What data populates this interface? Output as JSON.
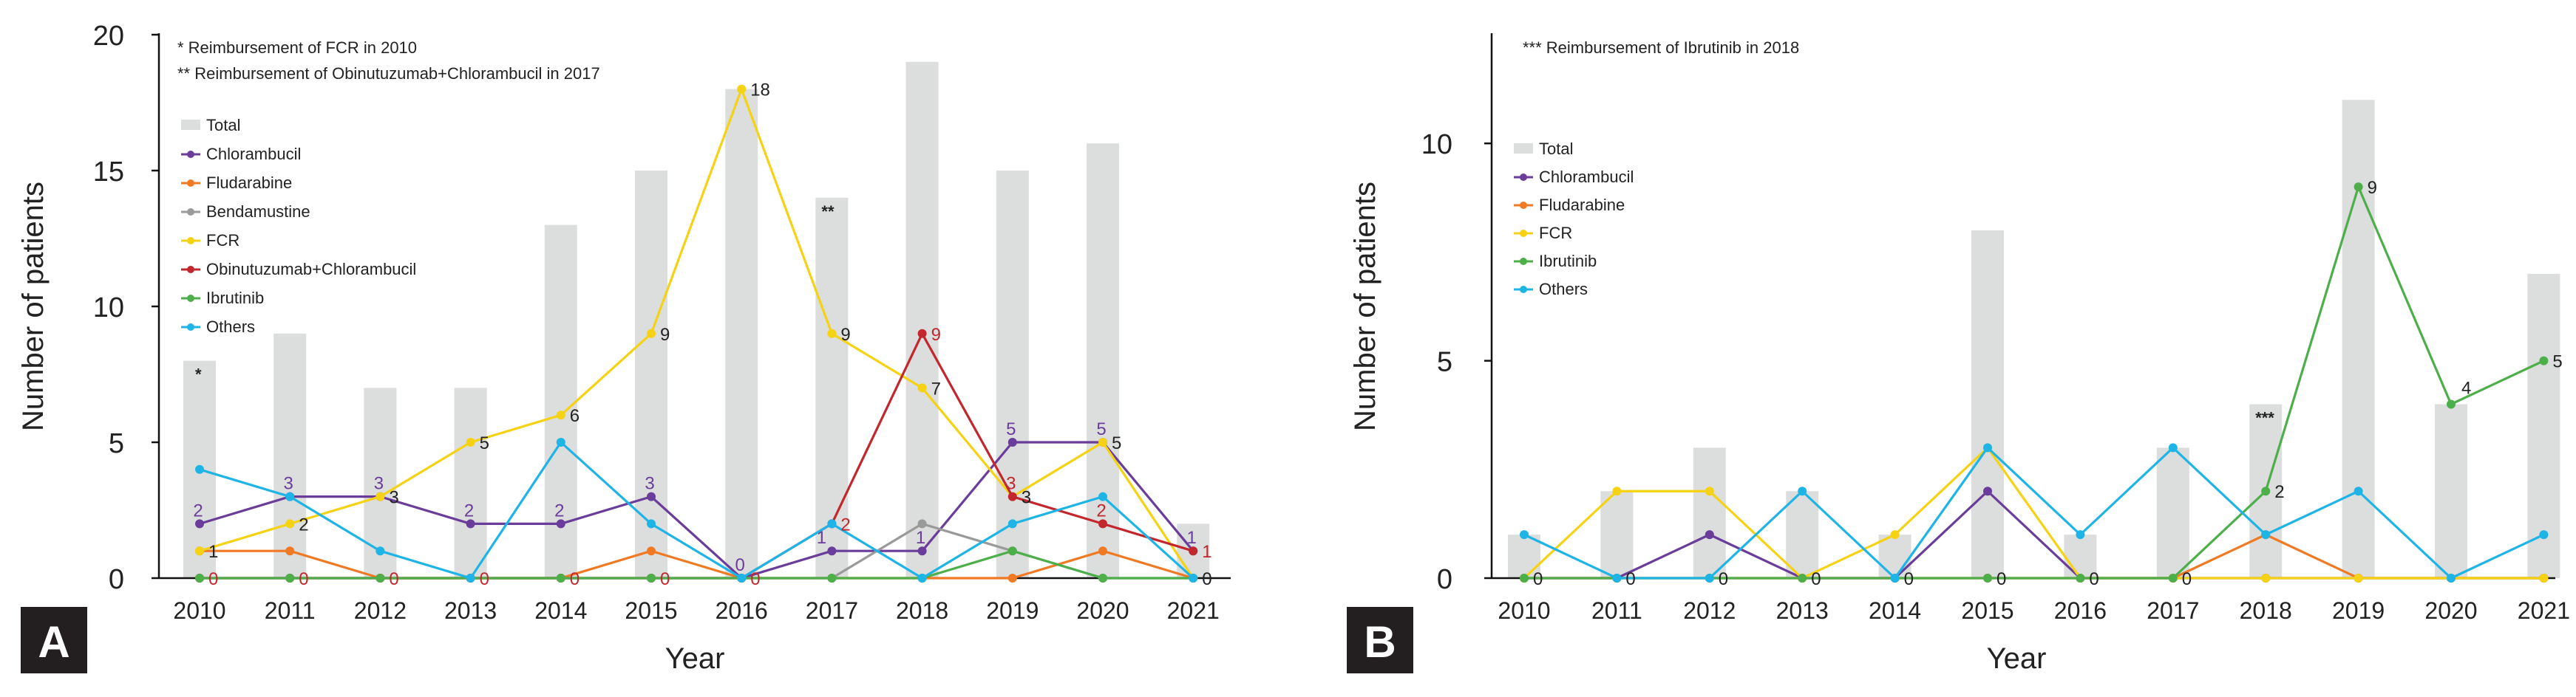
{
  "colors": {
    "total_bar": "#dcdddd",
    "axis": "#111111",
    "text": "#222222",
    "badge_bg": "#231f20",
    "badge_text": "#ffffff"
  },
  "chart_data": [
    {
      "type": "bar+line",
      "panel_label": "A",
      "xlabel": "Year",
      "ylabel": "Number of patients",
      "ylim": [
        0,
        20
      ],
      "yticks": [
        "0",
        "5",
        "10",
        "15",
        "20"
      ],
      "categories": [
        "2010",
        "2011",
        "2012",
        "2013",
        "2014",
        "2015",
        "2016",
        "2017",
        "2018",
        "2019",
        "2020",
        "2021"
      ],
      "notes": [
        "* Reimbursement of FCR in 2010",
        "** Reimbursement of Obinutuzumab+Chlorambucil in 2017"
      ],
      "bar_markers": [
        {
          "index": 0,
          "text": "*"
        },
        {
          "index": 7,
          "text": "**"
        }
      ],
      "total": {
        "name": "Total",
        "values": [
          8,
          9,
          7,
          7,
          13,
          15,
          18,
          14,
          19,
          15,
          16,
          2
        ]
      },
      "series": [
        {
          "name": "Chlorambucil",
          "color": "#6a3d9a",
          "values": [
            2,
            3,
            3,
            2,
            2,
            3,
            0,
            1,
            1,
            5,
            5,
            1
          ]
        },
        {
          "name": "Fludarabine",
          "color": "#f07a24",
          "values": [
            1,
            1,
            0,
            0,
            0,
            1,
            0,
            0,
            0,
            0,
            1,
            0
          ]
        },
        {
          "name": "Bendamustine",
          "color": "#9a9a9a",
          "values": [
            0,
            0,
            0,
            0,
            0,
            0,
            0,
            0,
            2,
            1,
            0,
            0
          ]
        },
        {
          "name": "FCR",
          "color": "#f5d214",
          "values": [
            1,
            2,
            3,
            5,
            6,
            9,
            18,
            9,
            7,
            3,
            5,
            0
          ]
        },
        {
          "name": "Obinutuzumab+Chlorambucil",
          "color": "#c1272d",
          "values": [
            0,
            0,
            0,
            0,
            0,
            0,
            0,
            2,
            9,
            3,
            2,
            1
          ]
        },
        {
          "name": "Ibrutinib",
          "color": "#4daf4a",
          "values": [
            0,
            0,
            0,
            0,
            0,
            0,
            0,
            0,
            0,
            1,
            0,
            0
          ]
        },
        {
          "name": "Others",
          "color": "#1fb4e6",
          "values": [
            4,
            3,
            1,
            0,
            5,
            2,
            0,
            2,
            0,
            2,
            3,
            0
          ]
        }
      ],
      "data_labels": [
        {
          "i": 0,
          "text": "2",
          "color": "#6a3d9a",
          "pos": "above"
        },
        {
          "i": 1,
          "text": "3",
          "color": "#6a3d9a",
          "pos": "above"
        },
        {
          "i": 2,
          "text": "3",
          "color": "#6a3d9a",
          "pos": "above"
        },
        {
          "i": 3,
          "text": "2",
          "color": "#6a3d9a",
          "pos": "above"
        },
        {
          "i": 4,
          "text": "2",
          "color": "#6a3d9a",
          "pos": "above"
        },
        {
          "i": 5,
          "text": "3",
          "color": "#6a3d9a",
          "pos": "above"
        },
        {
          "i": 6,
          "text": "0",
          "color": "#6a3d9a",
          "pos": "above"
        },
        {
          "i": 7,
          "text": "1",
          "color": "#6a3d9a",
          "pos": "above-left"
        },
        {
          "i": 8,
          "text": "1",
          "color": "#6a3d9a",
          "pos": "above"
        },
        {
          "i": 9,
          "text": "5",
          "color": "#6a3d9a",
          "pos": "above"
        },
        {
          "i": 10,
          "text": "5",
          "color": "#6a3d9a",
          "pos": "above"
        },
        {
          "i": 11,
          "text": "1",
          "color": "#6a3d9a",
          "pos": "above"
        },
        {
          "i": 0,
          "text": "1",
          "color": "#222222",
          "pos": "right"
        },
        {
          "i": 1,
          "text": "2",
          "color": "#222222",
          "pos": "right"
        },
        {
          "i": 2,
          "text": "3",
          "color": "#222222",
          "pos": "right"
        },
        {
          "i": 3,
          "text": "5",
          "color": "#222222",
          "pos": "right"
        },
        {
          "i": 4,
          "text": "6",
          "color": "#222222",
          "pos": "right"
        },
        {
          "i": 5,
          "text": "9",
          "color": "#222222",
          "pos": "right"
        },
        {
          "i": 6,
          "text": "18",
          "color": "#222222",
          "pos": "right"
        },
        {
          "i": 7,
          "text": "9",
          "color": "#222222",
          "pos": "right"
        },
        {
          "i": 8,
          "text": "7",
          "color": "#222222",
          "pos": "right"
        },
        {
          "i": 9,
          "text": "3",
          "color": "#222222",
          "pos": "right"
        },
        {
          "i": 10,
          "text": "5",
          "color": "#222222",
          "pos": "right"
        },
        {
          "i": 11,
          "text": "0",
          "color": "#222222",
          "pos": "right"
        },
        {
          "i": 7,
          "text": "2",
          "color": "#c1272d",
          "pos": "right"
        },
        {
          "i": 8,
          "text": "9",
          "color": "#c1272d",
          "pos": "right"
        },
        {
          "i": 9,
          "text": "3",
          "color": "#c1272d",
          "pos": "above"
        },
        {
          "i": 10,
          "text": "2",
          "color": "#c1272d",
          "pos": "above"
        },
        {
          "i": 11,
          "text": "1",
          "color": "#c1272d",
          "pos": "right"
        },
        {
          "i": 0,
          "text": "0",
          "color": "#c1272d",
          "pos": "right"
        },
        {
          "i": 1,
          "text": "0",
          "color": "#c1272d",
          "pos": "right"
        },
        {
          "i": 2,
          "text": "0",
          "color": "#c1272d",
          "pos": "right"
        },
        {
          "i": 3,
          "text": "0",
          "color": "#c1272d",
          "pos": "right"
        },
        {
          "i": 4,
          "text": "0",
          "color": "#c1272d",
          "pos": "right"
        },
        {
          "i": 5,
          "text": "0",
          "color": "#c1272d",
          "pos": "right"
        },
        {
          "i": 6,
          "text": "0",
          "color": "#c1272d",
          "pos": "right"
        }
      ]
    },
    {
      "type": "bar+line",
      "panel_label": "B",
      "xlabel": "Year",
      "ylabel": "Number of patients",
      "ylim": [
        0,
        12.5
      ],
      "yticks": [
        "0",
        "5",
        "10"
      ],
      "categories": [
        "2010",
        "2011",
        "2012",
        "2013",
        "2014",
        "2015",
        "2016",
        "2017",
        "2018",
        "2019",
        "2020",
        "2021"
      ],
      "notes": [
        "*** Reimbursement of Ibrutinib in 2018"
      ],
      "bar_markers": [
        {
          "index": 8,
          "text": "***"
        }
      ],
      "total": {
        "name": "Total",
        "values": [
          1,
          2,
          3,
          2,
          1,
          8,
          1,
          3,
          4,
          11,
          4,
          7
        ]
      },
      "series": [
        {
          "name": "Chlorambucil",
          "color": "#6a3d9a",
          "values": [
            0,
            0,
            1,
            0,
            0,
            2,
            0,
            0,
            0,
            0,
            0,
            0
          ]
        },
        {
          "name": "Fludarabine",
          "color": "#f07a24",
          "values": [
            0,
            0,
            0,
            0,
            0,
            0,
            0,
            0,
            1,
            0,
            0,
            0
          ]
        },
        {
          "name": "FCR",
          "color": "#f5d214",
          "values": [
            0,
            2,
            2,
            0,
            1,
            3,
            0,
            0,
            0,
            0,
            0,
            0
          ]
        },
        {
          "name": "Ibrutinib",
          "color": "#4daf4a",
          "values": [
            0,
            0,
            0,
            0,
            0,
            0,
            0,
            0,
            2,
            9,
            4,
            5
          ]
        },
        {
          "name": "Others",
          "color": "#1fb4e6",
          "values": [
            1,
            0,
            0,
            2,
            0,
            3,
            1,
            3,
            1,
            2,
            0,
            1
          ]
        }
      ],
      "data_labels": [
        {
          "i": 0,
          "text": "0",
          "color": "#222222",
          "pos": "right"
        },
        {
          "i": 1,
          "text": "0",
          "color": "#222222",
          "pos": "right"
        },
        {
          "i": 2,
          "text": "0",
          "color": "#222222",
          "pos": "right"
        },
        {
          "i": 3,
          "text": "0",
          "color": "#222222",
          "pos": "right"
        },
        {
          "i": 4,
          "text": "0",
          "color": "#222222",
          "pos": "right"
        },
        {
          "i": 5,
          "text": "0",
          "color": "#222222",
          "pos": "right"
        },
        {
          "i": 6,
          "text": "0",
          "color": "#222222",
          "pos": "right"
        },
        {
          "i": 7,
          "text": "0",
          "color": "#222222",
          "pos": "right"
        },
        {
          "i": 8,
          "text": "2",
          "color": "#222222",
          "pos": "right"
        },
        {
          "i": 9,
          "text": "9",
          "color": "#222222",
          "pos": "right"
        },
        {
          "i": 10,
          "text": "4",
          "color": "#222222",
          "pos": "above-right"
        },
        {
          "i": 11,
          "text": "5",
          "color": "#222222",
          "pos": "right"
        }
      ]
    }
  ]
}
